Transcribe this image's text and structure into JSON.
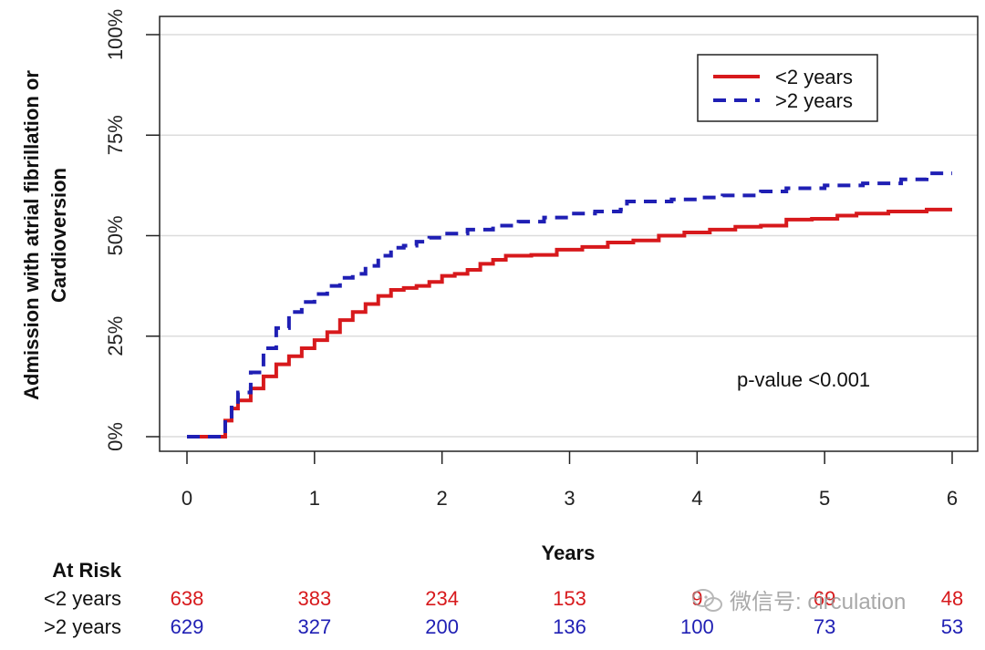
{
  "chart_data": {
    "type": "line",
    "title": "",
    "xlabel": "Years",
    "ylabel_lines": [
      "Admission with atrial fibrillation or",
      "Cardioversion"
    ],
    "xlim": [
      0,
      6
    ],
    "ylim": [
      0,
      100
    ],
    "x_ticks": [
      0,
      1,
      2,
      3,
      4,
      5,
      6
    ],
    "y_ticks": [
      {
        "value": 0,
        "label": "0%"
      },
      {
        "value": 25,
        "label": "25%"
      },
      {
        "value": 50,
        "label": "50%"
      },
      {
        "value": 75,
        "label": "75%"
      },
      {
        "value": 100,
        "label": "100%"
      }
    ],
    "grid": "horizontal",
    "legend_position": "top-right",
    "annotation": "p-value <0.001",
    "series": [
      {
        "name": "<2 years",
        "color": "#d7191c",
        "style": "solid",
        "points": [
          [
            0,
            0
          ],
          [
            0.2,
            0
          ],
          [
            0.25,
            0
          ],
          [
            0.3,
            4
          ],
          [
            0.35,
            7
          ],
          [
            0.4,
            9
          ],
          [
            0.5,
            12
          ],
          [
            0.6,
            15
          ],
          [
            0.7,
            18
          ],
          [
            0.8,
            20
          ],
          [
            0.9,
            22
          ],
          [
            1.0,
            24
          ],
          [
            1.1,
            26
          ],
          [
            1.2,
            29
          ],
          [
            1.3,
            31
          ],
          [
            1.4,
            33
          ],
          [
            1.5,
            35
          ],
          [
            1.6,
            36.5
          ],
          [
            1.7,
            37
          ],
          [
            1.8,
            37.5
          ],
          [
            1.9,
            38.5
          ],
          [
            2.0,
            40
          ],
          [
            2.1,
            40.5
          ],
          [
            2.2,
            41.5
          ],
          [
            2.3,
            43
          ],
          [
            2.4,
            44
          ],
          [
            2.5,
            45
          ],
          [
            2.7,
            45.2
          ],
          [
            2.9,
            46.5
          ],
          [
            3.1,
            47.2
          ],
          [
            3.3,
            48.3
          ],
          [
            3.5,
            48.8
          ],
          [
            3.7,
            50
          ],
          [
            3.9,
            50.8
          ],
          [
            4.1,
            51.5
          ],
          [
            4.3,
            52.2
          ],
          [
            4.5,
            52.5
          ],
          [
            4.7,
            54
          ],
          [
            4.9,
            54.2
          ],
          [
            5.1,
            55
          ],
          [
            5.25,
            55.5
          ],
          [
            5.5,
            56
          ],
          [
            5.7,
            56
          ],
          [
            5.8,
            56.5
          ],
          [
            6.0,
            56.5
          ]
        ]
      },
      {
        "name": ">2 years",
        "color": "#1f1fb4",
        "style": "dashed",
        "points": [
          [
            0,
            0
          ],
          [
            0.2,
            0
          ],
          [
            0.25,
            0
          ],
          [
            0.3,
            5
          ],
          [
            0.35,
            8
          ],
          [
            0.4,
            11
          ],
          [
            0.5,
            16
          ],
          [
            0.6,
            22
          ],
          [
            0.7,
            27
          ],
          [
            0.8,
            31
          ],
          [
            0.9,
            33.5
          ],
          [
            1.0,
            35.5
          ],
          [
            1.1,
            37.5
          ],
          [
            1.2,
            39.5
          ],
          [
            1.3,
            40.5
          ],
          [
            1.4,
            42.5
          ],
          [
            1.5,
            45
          ],
          [
            1.6,
            47
          ],
          [
            1.7,
            47.5
          ],
          [
            1.8,
            48.5
          ],
          [
            1.9,
            49.5
          ],
          [
            2.0,
            50.5
          ],
          [
            2.2,
            51.5
          ],
          [
            2.4,
            52.5
          ],
          [
            2.6,
            53.5
          ],
          [
            2.8,
            54.5
          ],
          [
            3.0,
            55.5
          ],
          [
            3.2,
            56
          ],
          [
            3.4,
            56.5
          ],
          [
            3.45,
            58.5
          ],
          [
            3.8,
            59
          ],
          [
            4.0,
            59.5
          ],
          [
            4.2,
            60
          ],
          [
            4.5,
            61
          ],
          [
            4.7,
            61.8
          ],
          [
            5.0,
            62.5
          ],
          [
            5.3,
            63
          ],
          [
            5.6,
            64
          ],
          [
            5.8,
            65.5
          ],
          [
            6.0,
            65.5
          ]
        ]
      }
    ]
  },
  "at_risk": {
    "header": "At Risk",
    "rows": [
      {
        "label": "<2 years",
        "color": "#d7191c",
        "values": [
          "638",
          "383",
          "234",
          "153",
          "9",
          "69",
          "48"
        ]
      },
      {
        "label": ">2 years",
        "color": "#1f1fb4",
        "values": [
          "629",
          "327",
          "200",
          "136",
          "100",
          "73",
          "53"
        ]
      }
    ]
  },
  "watermark": {
    "text": "微信号: circulation",
    "icon": "wechat-icon"
  },
  "colors": {
    "grid": "#dcdcdc",
    "axis": "#222222",
    "legend_border": "#222222"
  }
}
